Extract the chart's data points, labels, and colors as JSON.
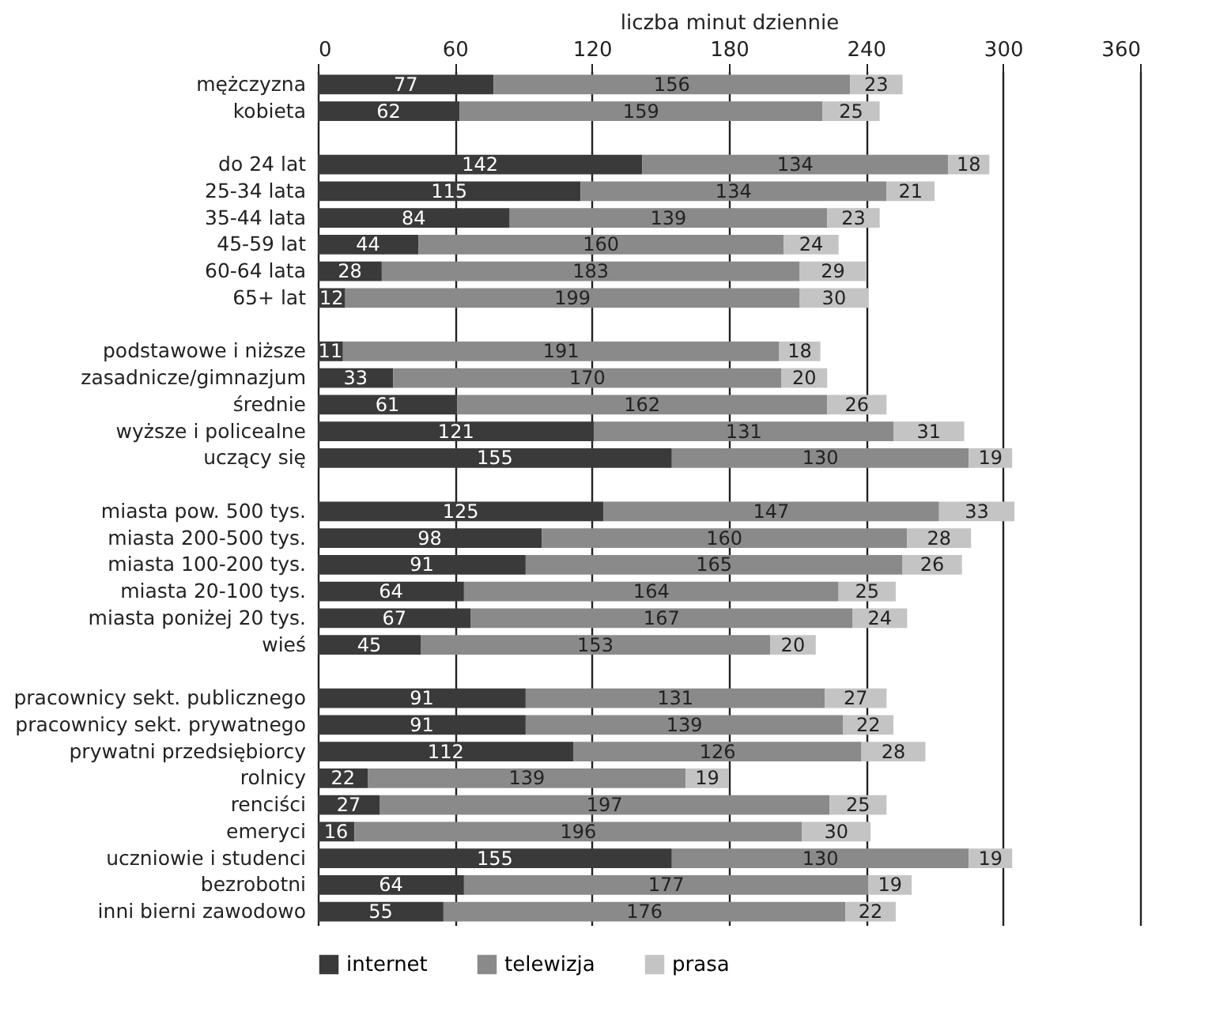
{
  "chart_data": {
    "type": "bar",
    "orientation": "horizontal",
    "stacked": true,
    "xlabel": "liczba minut dziennie",
    "xlim": [
      0,
      360
    ],
    "xticks": [
      0,
      60,
      120,
      180,
      240,
      300,
      360
    ],
    "grid": "x",
    "legend": "bottom",
    "data_labels": true,
    "categories": [
      "mężczyzna",
      "kobieta",
      null,
      "do 24 lat",
      "25-34 lata",
      "35-44 lata",
      "45-59 lat",
      "60-64 lata",
      "65+ lat",
      null,
      "podstawowe i niższe",
      "zasadnicze/gimnazjum",
      "średnie",
      "wyższe i policealne",
      "uczący się",
      null,
      "miasta pow. 500 tys.",
      "miasta 200-500 tys.",
      "miasta 100-200 tys.",
      "miasta 20-100 tys.",
      "miasta poniżej 20 tys.",
      "wieś",
      null,
      "pracownicy sekt. publicznego",
      "pracownicy sekt. prywatnego",
      "prywatni przedsiębiorcy",
      "rolnicy",
      "renciści",
      "emeryci",
      "uczniowie i studenci",
      "bezrobotni",
      "inni bierni zawodowo"
    ],
    "series": [
      {
        "name": "internet",
        "color": "#3a3a3a",
        "values": [
          77,
          62,
          null,
          142,
          115,
          84,
          44,
          28,
          12,
          null,
          11,
          33,
          61,
          121,
          155,
          null,
          125,
          98,
          91,
          64,
          67,
          45,
          null,
          91,
          91,
          112,
          22,
          27,
          16,
          155,
          64,
          55
        ]
      },
      {
        "name": "telewizja",
        "color": "#8a8a8a",
        "values": [
          156,
          159,
          null,
          134,
          134,
          139,
          160,
          183,
          199,
          null,
          191,
          170,
          162,
          131,
          130,
          null,
          147,
          160,
          165,
          164,
          167,
          153,
          null,
          131,
          139,
          126,
          139,
          197,
          196,
          130,
          177,
          176
        ]
      },
      {
        "name": "prasa",
        "color": "#c4c4c4",
        "values": [
          23,
          25,
          null,
          18,
          21,
          23,
          24,
          29,
          30,
          null,
          18,
          20,
          26,
          31,
          19,
          null,
          33,
          28,
          26,
          25,
          24,
          20,
          null,
          27,
          22,
          28,
          19,
          25,
          30,
          19,
          19,
          22
        ]
      }
    ]
  }
}
